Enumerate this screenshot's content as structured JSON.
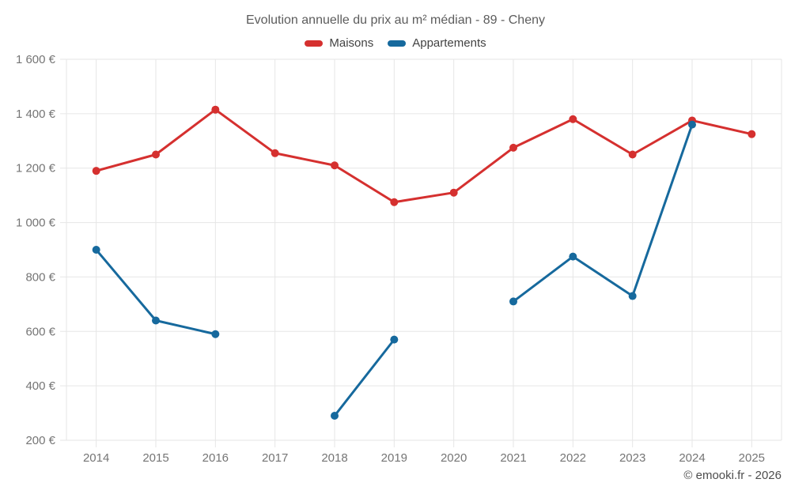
{
  "chart": {
    "title": "Evolution annuelle du prix au m² médian - 89 - Cheny",
    "footer": "© emooki.fr - 2026"
  },
  "chart_data": {
    "type": "line",
    "title": "Evolution annuelle du prix au m² médian - 89 - Cheny",
    "categories": [
      "2014",
      "2015",
      "2016",
      "2017",
      "2018",
      "2019",
      "2020",
      "2021",
      "2022",
      "2023",
      "2024",
      "2025"
    ],
    "series": [
      {
        "name": "Maisons",
        "color": "#d5302f",
        "values": [
          1190,
          1250,
          1415,
          1255,
          1210,
          1075,
          1110,
          1275,
          1380,
          1250,
          1375,
          1325
        ]
      },
      {
        "name": "Appartements",
        "color": "#16699d",
        "values": [
          900,
          640,
          590,
          null,
          290,
          570,
          null,
          710,
          875,
          730,
          1360,
          null
        ]
      }
    ],
    "xlabel": "",
    "ylabel": "",
    "ylim": [
      200,
      1600
    ],
    "ytick_values": [
      200,
      400,
      600,
      800,
      1000,
      1200,
      1400,
      1600
    ],
    "ytick_labels": [
      "200 €",
      "400 €",
      "600 €",
      "800 €",
      "1 000 €",
      "1 200 €",
      "1 400 €",
      "1 600 €"
    ],
    "grid": true,
    "grid_color": "#e6e6e6",
    "legend_position": "top"
  }
}
